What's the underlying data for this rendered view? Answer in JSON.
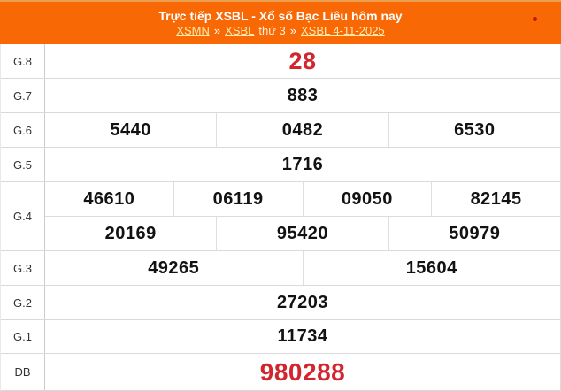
{
  "header": {
    "title": "Trực tiếp XSBL - Xổ số Bạc Liêu hôm nay",
    "breadcrumb": [
      {
        "text": "XSMN",
        "type": "link"
      },
      {
        "text": "»",
        "type": "sep"
      },
      {
        "text": "XSBL",
        "type": "link"
      },
      {
        "text": "thứ 3",
        "type": "text"
      },
      {
        "text": "»",
        "type": "sep"
      },
      {
        "text": "XSBL 4-11-2025",
        "type": "link"
      }
    ]
  },
  "table": {
    "rows": [
      {
        "label": "G.8",
        "highlight": true,
        "lines": [
          [
            "28"
          ]
        ]
      },
      {
        "label": "G.7",
        "highlight": false,
        "lines": [
          [
            "883"
          ]
        ]
      },
      {
        "label": "G.6",
        "highlight": false,
        "lines": [
          [
            "5440",
            "0482",
            "6530"
          ]
        ]
      },
      {
        "label": "G.5",
        "highlight": false,
        "lines": [
          [
            "1716"
          ]
        ]
      },
      {
        "label": "G.4",
        "highlight": false,
        "lines": [
          [
            "46610",
            "06119",
            "09050",
            "82145"
          ],
          [
            "20169",
            "95420",
            "50979"
          ]
        ]
      },
      {
        "label": "G.3",
        "highlight": false,
        "lines": [
          [
            "49265",
            "15604"
          ]
        ]
      },
      {
        "label": "G.2",
        "highlight": false,
        "lines": [
          [
            "27203"
          ]
        ]
      },
      {
        "label": "G.1",
        "highlight": false,
        "lines": [
          [
            "11734"
          ]
        ]
      },
      {
        "label": "ĐB",
        "highlight": true,
        "lines": [
          [
            "980288"
          ]
        ]
      }
    ]
  },
  "colors": {
    "header_bg": "#f86906",
    "header_top_border": "#eca04f",
    "highlight_red": "#d2262e",
    "link_yellow": "#ffe9a8",
    "live_dot": "#c41405"
  }
}
